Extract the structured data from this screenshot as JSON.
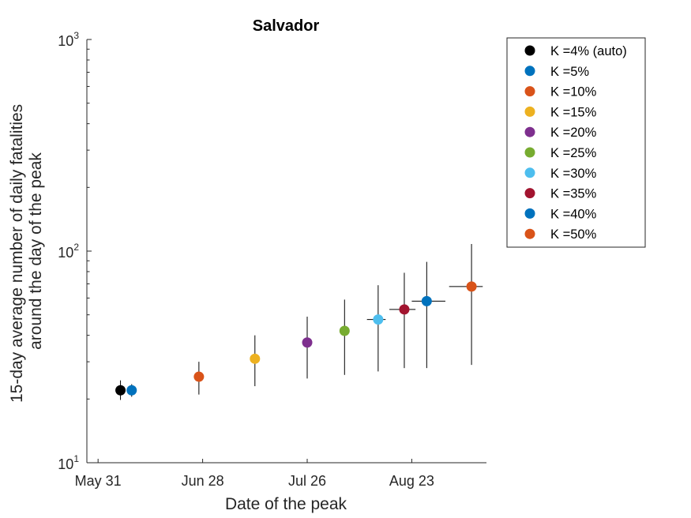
{
  "chart_data": {
    "type": "scatter",
    "title": "Salvador",
    "xlabel": "Date of the peak",
    "ylabel_lines": [
      "15-day average number of daily fatalities",
      "around the day of the peak"
    ],
    "y_scale": "log",
    "ylim": [
      10,
      1000
    ],
    "y_ticks": [
      {
        "value": 10,
        "base": "10",
        "exp": "1"
      },
      {
        "value": 100,
        "base": "10",
        "exp": "2"
      },
      {
        "value": 1000,
        "base": "10",
        "exp": "3"
      }
    ],
    "xlim": [
      "2020-05-28",
      "2020-09-12"
    ],
    "x_ticks": [
      {
        "date": "2020-05-31",
        "label": "May 31"
      },
      {
        "date": "2020-06-28",
        "label": "Jun 28"
      },
      {
        "date": "2020-07-26",
        "label": "Jul 26"
      },
      {
        "date": "2020-08-23",
        "label": "Aug 23"
      }
    ],
    "legend_position": "outside-right",
    "series": [
      {
        "name": "K =4% (auto)",
        "color": "#000000",
        "x": "2020-06-06",
        "y": 22,
        "y_low": 19.8,
        "y_high": 24.5,
        "x_low": "2020-06-06",
        "x_high": "2020-06-06"
      },
      {
        "name": "K =5%",
        "color": "#0072BD",
        "x": "2020-06-09",
        "y": 22,
        "y_low": 20.5,
        "y_high": 23.5,
        "x_low": "2020-06-09",
        "x_high": "2020-06-09"
      },
      {
        "name": "K =10%",
        "color": "#D95319",
        "x": "2020-06-27",
        "y": 25.5,
        "y_low": 21,
        "y_high": 30,
        "x_low": "2020-06-27",
        "x_high": "2020-06-27"
      },
      {
        "name": "K =15%",
        "color": "#EDB120",
        "x": "2020-07-12",
        "y": 31,
        "y_low": 23,
        "y_high": 40,
        "x_low": "2020-07-12",
        "x_high": "2020-07-12"
      },
      {
        "name": "K =20%",
        "color": "#7E2F8E",
        "x": "2020-07-26",
        "y": 37,
        "y_low": 25,
        "y_high": 49,
        "x_low": "2020-07-26",
        "x_high": "2020-07-26"
      },
      {
        "name": "K =25%",
        "color": "#77AC30",
        "x": "2020-08-05",
        "y": 42,
        "y_low": 26,
        "y_high": 59,
        "x_low": "2020-08-04",
        "x_high": "2020-08-06"
      },
      {
        "name": "K =30%",
        "color": "#4DBEEE",
        "x": "2020-08-14",
        "y": 47.5,
        "y_low": 27,
        "y_high": 69,
        "x_low": "2020-08-11",
        "x_high": "2020-08-16"
      },
      {
        "name": "K =35%",
        "color": "#A2142F",
        "x": "2020-08-21",
        "y": 53,
        "y_low": 28,
        "y_high": 79,
        "x_low": "2020-08-17",
        "x_high": "2020-08-24"
      },
      {
        "name": "K =40%",
        "color": "#0072BD",
        "x": "2020-08-27",
        "y": 58,
        "y_low": 28,
        "y_high": 89,
        "x_low": "2020-08-23",
        "x_high": "2020-09-01"
      },
      {
        "name": "K =50%",
        "color": "#D95319",
        "x": "2020-09-08",
        "y": 68,
        "y_low": 29,
        "y_high": 108,
        "x_low": "2020-09-02",
        "x_high": "2020-09-11"
      }
    ]
  }
}
